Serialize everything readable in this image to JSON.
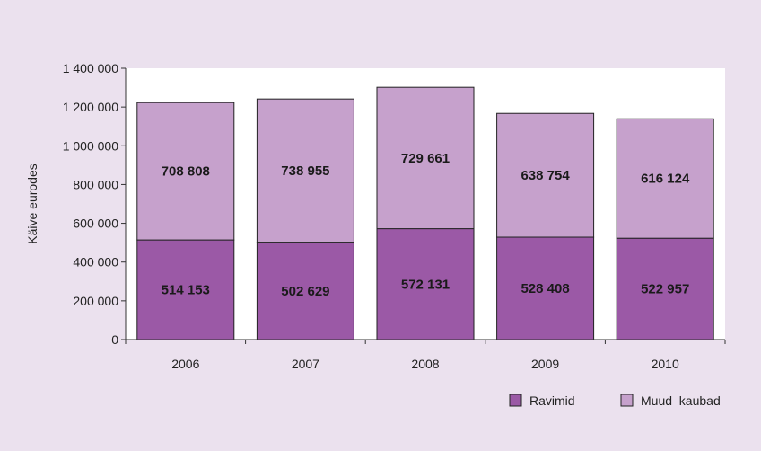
{
  "chart_data": {
    "type": "bar",
    "stacked": true,
    "title": "",
    "xlabel": "",
    "ylabel": "Käive eurodes",
    "ylim": [
      0,
      1400000
    ],
    "yticks": [
      0,
      200000,
      400000,
      600000,
      800000,
      1000000,
      1200000,
      1400000
    ],
    "ytick_labels": [
      "0",
      "200 000",
      "400 000",
      "600 000",
      "800 000",
      "1 000 000",
      "1 200 000",
      "1 400 000"
    ],
    "categories": [
      "2006",
      "2007",
      "2008",
      "2009",
      "2010"
    ],
    "series": [
      {
        "name": "Ravimid",
        "color": "#9b59a6",
        "values": [
          514153,
          502629,
          572131,
          528408,
          522957
        ],
        "labels": [
          "514 153",
          "502 629",
          "572 131",
          "528 408",
          "522 957"
        ]
      },
      {
        "name": "Muud  kaubad",
        "color": "#c6a1cc",
        "values": [
          708808,
          738955,
          729661,
          638754,
          616124
        ],
        "labels": [
          "708 808",
          "738 955",
          "729 661",
          "638 754",
          "616 124"
        ]
      }
    ],
    "legend_position": "bottom-right",
    "grid": false
  },
  "colors": {
    "page_background": "#ebe1ee",
    "plot_background": "#ffffff",
    "bar_stroke": "#222222"
  }
}
